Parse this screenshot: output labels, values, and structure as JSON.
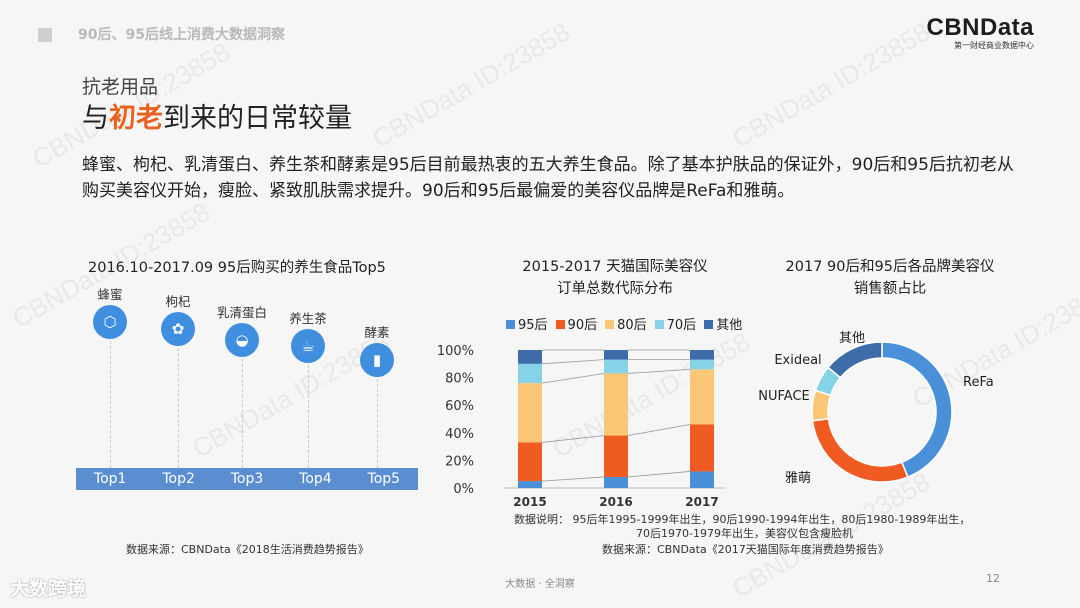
{
  "header": {
    "title": "90后、95后线上消费大数据洞察"
  },
  "logo": {
    "name": "CBNData",
    "sub": "第一财经商业数据中心"
  },
  "section": {
    "label": "抗老用品",
    "heading_pre": "与",
    "heading_hl": "初老",
    "heading_post": "到来的日常较量"
  },
  "intro": "蜂蜜、枸杞、乳清蛋白、养生茶和酵素是95后目前最热衷的五大养生食品。除了基本护肤品的保证外，90后和95后抗初老从购买美容仪开始，瘦脸、紧致肌肤需求提升。90后和95后最偏爱的美容仪品牌是ReFa和雅萌。",
  "timeline": {
    "title": "2016.10-2017.09 95后购买的养生食品Top5",
    "items": [
      {
        "name": "蜂蜜",
        "rank": "Top1",
        "icon": "honeycomb-icon"
      },
      {
        "name": "枸杞",
        "rank": "Top2",
        "icon": "berries-icon"
      },
      {
        "name": "乳清蛋白",
        "rank": "Top3",
        "icon": "protein-icon"
      },
      {
        "name": "养生茶",
        "rank": "Top4",
        "icon": "tea-cup-icon"
      },
      {
        "name": "酵素",
        "rank": "Top5",
        "icon": "bottle-icon"
      }
    ],
    "source": "数据来源：CBNData《2018生活消费趋势报告》"
  },
  "bar_chart": {
    "title_line1": "2015-2017 天猫国际美容仪",
    "title_line2": "订单总数代际分布",
    "note_line1": "数据说明：  95后年1995-1999年出生，90后1990-1994年出生，80后1980-1989年出生，",
    "note_line2": "70后1970-1979年出生，美容仪包含瘦脸机",
    "source": "数据来源：CBNData《2017天猫国际年度消费趋势报告》"
  },
  "donut": {
    "title_line1": "2017 90后和95后各品牌美容仪",
    "title_line2": "销售额占比"
  },
  "chart_data": [
    {
      "type": "bar",
      "stacked": true,
      "categories": [
        "2015",
        "2016",
        "2017"
      ],
      "yticks": [
        "0%",
        "20%",
        "40%",
        "60%",
        "80%",
        "100%"
      ],
      "ylim": [
        0,
        100
      ],
      "series": [
        {
          "name": "95后",
          "color": "#4a90d9",
          "values": [
            5,
            8,
            12
          ]
        },
        {
          "name": "90后",
          "color": "#ef5b21",
          "values": [
            28,
            30,
            34
          ]
        },
        {
          "name": "80后",
          "color": "#fbc676",
          "values": [
            43,
            45,
            40
          ]
        },
        {
          "name": "70后",
          "color": "#86d3e8",
          "values": [
            14,
            10,
            7
          ]
        },
        {
          "name": "其他",
          "color": "#3e6ca8",
          "values": [
            10,
            7,
            7
          ]
        }
      ]
    },
    {
      "type": "pie",
      "donut": true,
      "labels": [
        "ReFa",
        "雅萌",
        "NUFACE",
        "Exideal",
        "其他"
      ],
      "values": [
        44,
        29,
        7,
        6,
        14
      ],
      "colors": [
        "#4a90d9",
        "#ef5b21",
        "#fbc676",
        "#86d3e8",
        "#3e6ca8"
      ]
    }
  ],
  "footer": {
    "center": "大数据 · 全洞察",
    "page": "12",
    "brand": "大数跨境"
  }
}
